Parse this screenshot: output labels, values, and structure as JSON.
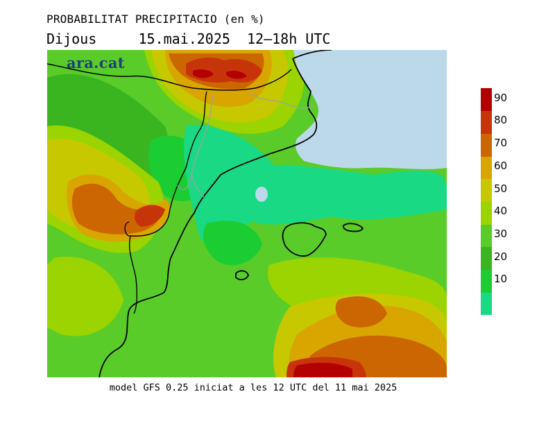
{
  "header": {
    "title": "PROBABILITAT PRECIPITACIO (en %)",
    "day": "Dijous",
    "datetime": "15.mai.2025  12–18h UTC"
  },
  "brand": {
    "logo_text": "ara.cat"
  },
  "legend": {
    "ticks": [
      "90",
      "80",
      "70",
      "60",
      "50",
      "40",
      "30",
      "20",
      "10"
    ],
    "colors": [
      "#19d985",
      "#1ccc33",
      "#3ab51f",
      "#5acc29",
      "#9bd400",
      "#c8c800",
      "#d9a600",
      "#cc6600",
      "#c8340a",
      "#b30000"
    ]
  },
  "footer": {
    "text": "model GFS 0.25 iniciat a les 12 UTC del 11 mai 2025"
  },
  "colors": {
    "sea": "#bcd9ea",
    "coast": "#000000",
    "border": "#a0a0a0"
  }
}
